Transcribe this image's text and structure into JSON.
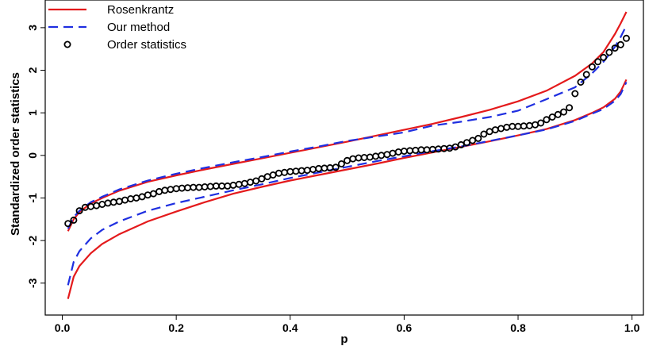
{
  "chart_data": {
    "type": "line",
    "title": "",
    "xlabel": "p",
    "ylabel": "Standardized order statistics",
    "xlim": [
      -0.03,
      1.02
    ],
    "ylim": [
      -3.75,
      3.65
    ],
    "xticks": [
      0.0,
      0.2,
      0.4,
      0.6,
      0.8,
      1.0
    ],
    "xtick_labels": [
      "0.0",
      "0.2",
      "0.4",
      "0.6",
      "0.8",
      "1.0"
    ],
    "yticks": [
      -3,
      -2,
      -1,
      0,
      1,
      2,
      3
    ],
    "ytick_labels": [
      "-3",
      "-2",
      "-1",
      "0",
      "1",
      "2",
      "3"
    ],
    "grid": false,
    "legend_position": "top-left",
    "x": [
      0.01,
      0.02,
      0.03,
      0.05,
      0.07,
      0.1,
      0.15,
      0.2,
      0.25,
      0.3,
      0.35,
      0.4,
      0.45,
      0.5,
      0.55,
      0.6,
      0.65,
      0.7,
      0.75,
      0.8,
      0.85,
      0.9,
      0.93,
      0.95,
      0.97,
      0.98,
      0.99
    ],
    "series": [
      {
        "name": "Rosenkrantz",
        "style": "solid",
        "color": "#e41a1c",
        "upper": [
          -1.78,
          -1.5,
          -1.33,
          -1.13,
          -1.0,
          -0.83,
          -0.62,
          -0.47,
          -0.33,
          -0.2,
          -0.07,
          0.06,
          0.19,
          0.32,
          0.46,
          0.6,
          0.74,
          0.9,
          1.07,
          1.27,
          1.52,
          1.87,
          2.16,
          2.43,
          2.85,
          3.1,
          3.37
        ],
        "lower": [
          -3.37,
          -2.85,
          -2.6,
          -2.3,
          -2.08,
          -1.85,
          -1.55,
          -1.32,
          -1.1,
          -0.9,
          -0.74,
          -0.59,
          -0.46,
          -0.33,
          -0.2,
          -0.06,
          0.07,
          0.2,
          0.33,
          0.47,
          0.62,
          0.83,
          1.0,
          1.13,
          1.33,
          1.5,
          1.78
        ]
      },
      {
        "name": "Our method",
        "style": "dashed",
        "color": "#1f2fe0",
        "upper": [
          -1.72,
          -1.45,
          -1.3,
          -1.1,
          -0.97,
          -0.8,
          -0.59,
          -0.43,
          -0.29,
          -0.16,
          -0.04,
          0.09,
          0.21,
          0.34,
          0.44,
          0.54,
          0.7,
          0.79,
          0.9,
          1.05,
          1.32,
          1.6,
          1.93,
          2.2,
          2.55,
          2.78,
          3.05
        ],
        "lower": [
          -3.05,
          -2.5,
          -2.25,
          -1.95,
          -1.75,
          -1.55,
          -1.3,
          -1.12,
          -0.97,
          -0.82,
          -0.68,
          -0.53,
          -0.4,
          -0.27,
          -0.14,
          -0.02,
          0.1,
          0.21,
          0.34,
          0.47,
          0.61,
          0.81,
          0.98,
          1.09,
          1.28,
          1.44,
          1.72
        ]
      }
    ],
    "points": {
      "name": "Order statistics",
      "marker": "open-circle",
      "x": [
        0.01,
        0.02,
        0.03,
        0.04,
        0.05,
        0.06,
        0.07,
        0.08,
        0.09,
        0.1,
        0.11,
        0.12,
        0.13,
        0.14,
        0.15,
        0.16,
        0.17,
        0.18,
        0.19,
        0.2,
        0.21,
        0.22,
        0.23,
        0.24,
        0.25,
        0.26,
        0.27,
        0.28,
        0.29,
        0.3,
        0.31,
        0.32,
        0.33,
        0.34,
        0.35,
        0.36,
        0.37,
        0.38,
        0.39,
        0.4,
        0.41,
        0.42,
        0.43,
        0.44,
        0.45,
        0.46,
        0.47,
        0.48,
        0.49,
        0.5,
        0.51,
        0.52,
        0.53,
        0.54,
        0.55,
        0.56,
        0.57,
        0.58,
        0.59,
        0.6,
        0.61,
        0.62,
        0.63,
        0.64,
        0.65,
        0.66,
        0.67,
        0.68,
        0.69,
        0.7,
        0.71,
        0.72,
        0.73,
        0.74,
        0.75,
        0.76,
        0.77,
        0.78,
        0.79,
        0.8,
        0.81,
        0.82,
        0.83,
        0.84,
        0.85,
        0.86,
        0.87,
        0.88,
        0.89,
        0.9,
        0.91,
        0.92,
        0.93,
        0.94,
        0.95,
        0.96,
        0.97,
        0.98,
        0.99
      ],
      "y": [
        -1.6,
        -1.52,
        -1.3,
        -1.22,
        -1.2,
        -1.18,
        -1.15,
        -1.12,
        -1.1,
        -1.08,
        -1.05,
        -1.02,
        -1.0,
        -0.97,
        -0.93,
        -0.9,
        -0.85,
        -0.82,
        -0.8,
        -0.78,
        -0.77,
        -0.76,
        -0.75,
        -0.75,
        -0.74,
        -0.73,
        -0.72,
        -0.72,
        -0.72,
        -0.7,
        -0.68,
        -0.66,
        -0.63,
        -0.6,
        -0.55,
        -0.5,
        -0.46,
        -0.42,
        -0.4,
        -0.38,
        -0.37,
        -0.36,
        -0.35,
        -0.33,
        -0.31,
        -0.3,
        -0.29,
        -0.28,
        -0.2,
        -0.12,
        -0.08,
        -0.06,
        -0.05,
        -0.04,
        -0.02,
        0.0,
        0.02,
        0.05,
        0.08,
        0.1,
        0.11,
        0.12,
        0.13,
        0.13,
        0.14,
        0.15,
        0.16,
        0.17,
        0.2,
        0.25,
        0.3,
        0.35,
        0.4,
        0.5,
        0.56,
        0.6,
        0.63,
        0.66,
        0.68,
        0.68,
        0.69,
        0.7,
        0.72,
        0.76,
        0.84,
        0.9,
        0.96,
        1.02,
        1.12,
        1.45,
        1.72,
        1.9,
        2.08,
        2.2,
        2.3,
        2.42,
        2.52,
        2.6,
        2.75
      ]
    },
    "legend": [
      {
        "label": "Rosenkrantz",
        "kind": "solid",
        "color": "#e41a1c"
      },
      {
        "label": "Our method",
        "kind": "dashed",
        "color": "#1f2fe0"
      },
      {
        "label": "Order statistics",
        "kind": "open-circle",
        "color": "#000000"
      }
    ]
  }
}
